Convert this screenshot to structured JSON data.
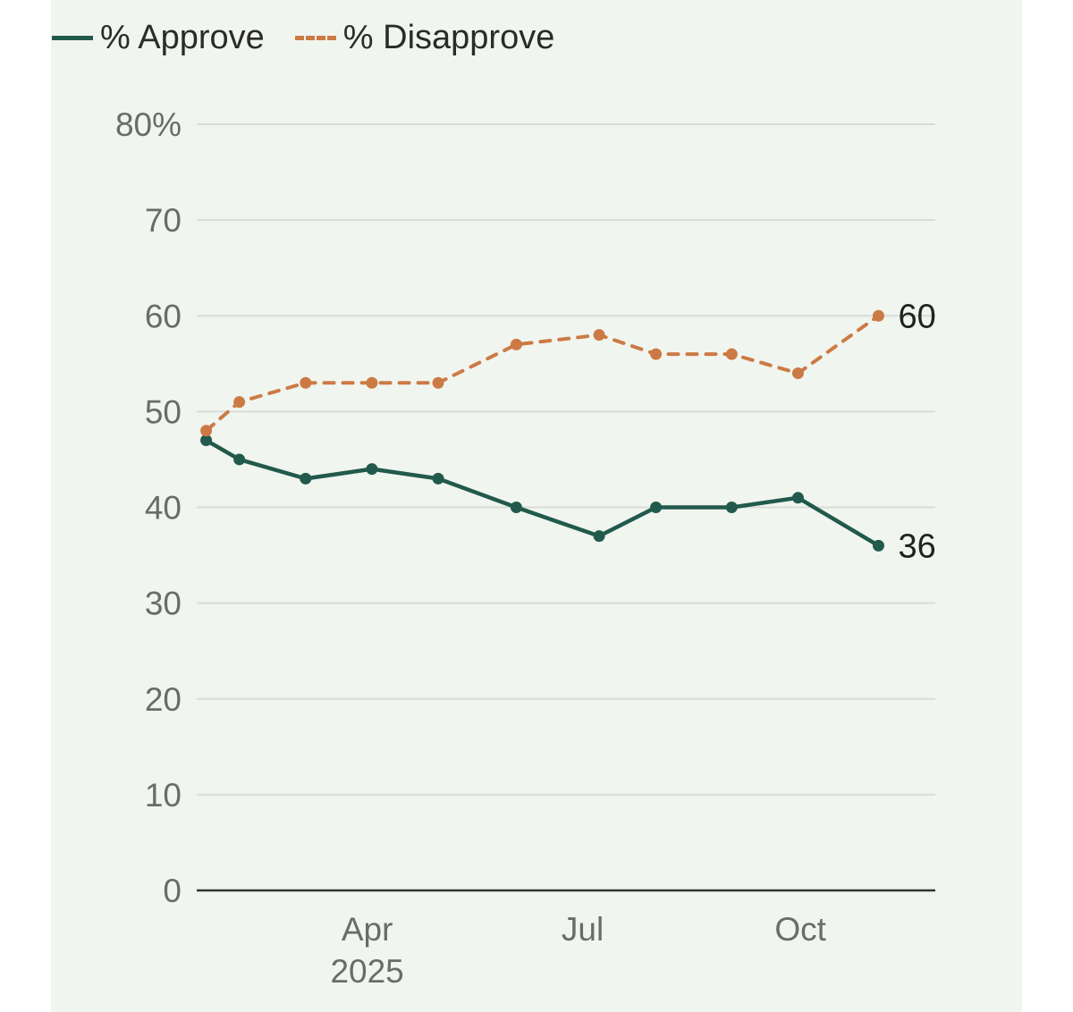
{
  "legend": {
    "approve": "% Approve",
    "disapprove": "% Disapprove"
  },
  "colors": {
    "approve": "#215a4c",
    "disapprove": "#cc7a45",
    "grid": "#d9ddd7",
    "axis": "#333333",
    "background": "#f1f5ef"
  },
  "chart_data": {
    "type": "line",
    "title": "",
    "xlabel": "",
    "ylabel": "",
    "ylim": [
      0,
      80
    ],
    "y_ticks": [
      0,
      10,
      20,
      30,
      40,
      50,
      60,
      70,
      80
    ],
    "y_tick_labels": [
      "0",
      "10",
      "20",
      "30",
      "40",
      "50",
      "60",
      "70",
      "80%"
    ],
    "x_ticks": [
      {
        "date": "2025-04-01",
        "label": "Apr",
        "sublabel": "2025"
      },
      {
        "date": "2025-07-01",
        "label": "Jul",
        "sublabel": ""
      },
      {
        "date": "2025-10-01",
        "label": "Oct",
        "sublabel": ""
      }
    ],
    "grid": true,
    "legend_position": "top-left",
    "x_dates": [
      "2025-01-23",
      "2025-02-06",
      "2025-03-06",
      "2025-04-03",
      "2025-05-01",
      "2025-06-03",
      "2025-07-08",
      "2025-08-01",
      "2025-09-02",
      "2025-09-30",
      "2025-11-03"
    ],
    "series": [
      {
        "name": "% Approve",
        "key": "approve",
        "style": "solid",
        "values": [
          47,
          45,
          43,
          44,
          43,
          40,
          37,
          40,
          40,
          41,
          36
        ],
        "end_label": "36"
      },
      {
        "name": "% Disapprove",
        "key": "disapprove",
        "style": "dashed",
        "values": [
          48,
          51,
          53,
          53,
          53,
          57,
          58,
          56,
          56,
          54,
          60
        ],
        "end_label": "60"
      }
    ]
  }
}
